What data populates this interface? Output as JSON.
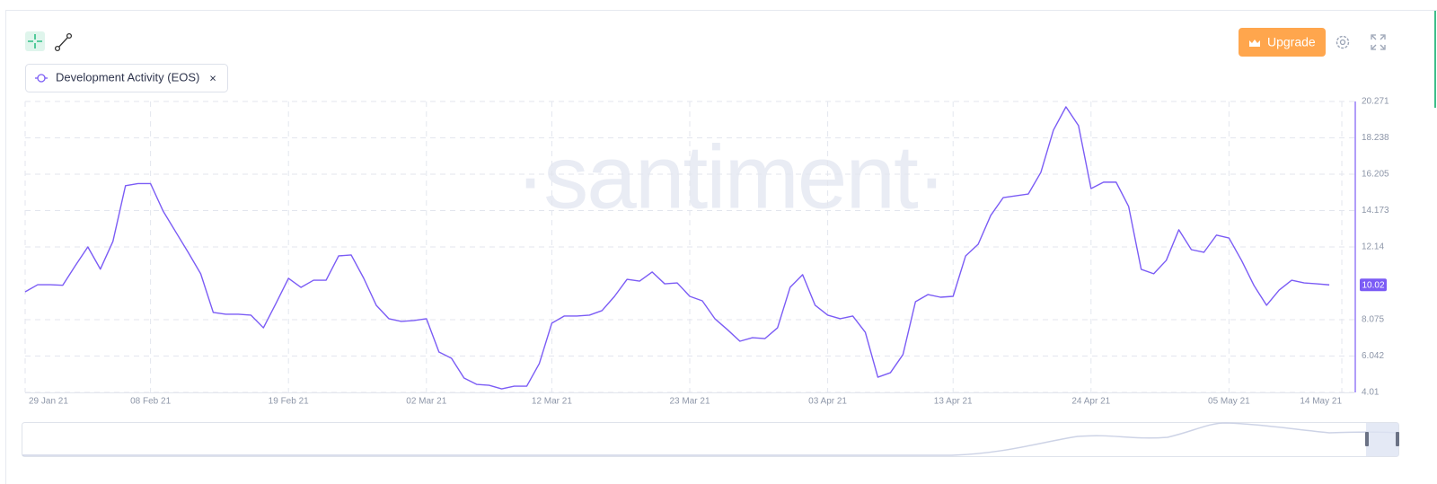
{
  "toolbar": {
    "upgrade": "Upgrade"
  },
  "metric_chip": {
    "close": "×"
  },
  "watermark": "·santiment·",
  "chart_data": {
    "type": "line",
    "series": [
      {
        "name": "Development Activity (EOS)",
        "color": "#7b5cf5",
        "values": [
          9.63,
          10.03,
          10.03,
          10.0,
          11.09,
          12.14,
          10.9,
          12.45,
          15.56,
          15.68,
          15.68,
          14.15,
          12.99,
          11.84,
          10.64,
          8.48,
          8.38,
          8.38,
          8.33,
          7.62,
          8.98,
          10.39,
          9.88,
          10.28,
          10.28,
          11.64,
          11.69,
          10.39,
          8.88,
          8.13,
          7.98,
          8.03,
          8.13,
          6.27,
          5.92,
          4.81,
          4.46,
          4.41,
          4.21,
          4.36,
          4.36,
          5.62,
          7.88,
          8.28,
          8.28,
          8.33,
          8.58,
          9.38,
          10.33,
          10.23,
          10.74,
          10.08,
          10.13,
          9.38,
          9.13,
          8.13,
          7.52,
          6.87,
          7.07,
          7.02,
          7.62,
          9.88,
          10.59,
          8.88,
          8.33,
          8.13,
          8.28,
          7.37,
          4.86,
          5.11,
          6.12,
          9.08,
          9.48,
          9.33,
          9.38,
          11.64,
          12.29,
          13.9,
          14.9,
          15.0,
          15.1,
          16.31,
          18.67,
          19.97,
          18.92,
          15.4,
          15.76,
          15.76,
          14.4,
          10.89,
          10.64,
          11.39,
          13.1,
          11.99,
          11.84,
          12.8,
          12.64,
          11.39,
          9.98,
          8.88,
          9.73,
          10.28,
          10.13,
          10.08,
          10.02
        ]
      }
    ],
    "x": [
      "2021-01-29",
      "2021-01-30",
      "2021-01-31",
      "2021-02-01",
      "2021-02-02",
      "2021-02-03",
      "2021-02-04",
      "2021-02-05",
      "2021-02-06",
      "2021-02-07",
      "2021-02-08",
      "2021-02-09",
      "2021-02-10",
      "2021-02-11",
      "2021-02-12",
      "2021-02-13",
      "2021-02-14",
      "2021-02-15",
      "2021-02-16",
      "2021-02-17",
      "2021-02-18",
      "2021-02-19",
      "2021-02-20",
      "2021-02-21",
      "2021-02-22",
      "2021-02-23",
      "2021-02-24",
      "2021-02-25",
      "2021-02-26",
      "2021-02-27",
      "2021-02-28",
      "2021-03-01",
      "2021-03-02",
      "2021-03-03",
      "2021-03-04",
      "2021-03-05",
      "2021-03-06",
      "2021-03-07",
      "2021-03-08",
      "2021-03-09",
      "2021-03-10",
      "2021-03-11",
      "2021-03-12",
      "2021-03-13",
      "2021-03-14",
      "2021-03-15",
      "2021-03-16",
      "2021-03-17",
      "2021-03-18",
      "2021-03-19",
      "2021-03-20",
      "2021-03-21",
      "2021-03-22",
      "2021-03-23",
      "2021-03-24",
      "2021-03-25",
      "2021-03-26",
      "2021-03-27",
      "2021-03-28",
      "2021-03-29",
      "2021-03-30",
      "2021-03-31",
      "2021-04-01",
      "2021-04-02",
      "2021-04-03",
      "2021-04-04",
      "2021-04-05",
      "2021-04-06",
      "2021-04-07",
      "2021-04-08",
      "2021-04-09",
      "2021-04-10",
      "2021-04-11",
      "2021-04-12",
      "2021-04-13",
      "2021-04-14",
      "2021-04-15",
      "2021-04-16",
      "2021-04-17",
      "2021-04-18",
      "2021-04-19",
      "2021-04-20",
      "2021-04-21",
      "2021-04-22",
      "2021-04-23",
      "2021-04-24",
      "2021-04-25",
      "2021-04-26",
      "2021-04-27",
      "2021-04-28",
      "2021-04-29",
      "2021-04-30",
      "2021-05-01",
      "2021-05-02",
      "2021-05-03",
      "2021-05-04",
      "2021-05-05",
      "2021-05-06",
      "2021-05-07",
      "2021-05-08",
      "2021-05-09",
      "2021-05-10",
      "2021-05-11",
      "2021-05-12",
      "2021-05-13"
    ],
    "xlim": [
      "2021-01-29",
      "2021-05-15"
    ],
    "xticks": [
      {
        "value": "2021-01-29",
        "label": "29 Jan 21"
      },
      {
        "value": "2021-02-08",
        "label": "08 Feb 21"
      },
      {
        "value": "2021-02-19",
        "label": "19 Feb 21"
      },
      {
        "value": "2021-03-02",
        "label": "02 Mar 21"
      },
      {
        "value": "2021-03-12",
        "label": "12 Mar 21"
      },
      {
        "value": "2021-03-23",
        "label": "23 Mar 21"
      },
      {
        "value": "2021-04-03",
        "label": "03 Apr 21"
      },
      {
        "value": "2021-04-13",
        "label": "13 Apr 21"
      },
      {
        "value": "2021-04-24",
        "label": "24 Apr 21"
      },
      {
        "value": "2021-05-05",
        "label": "05 May 21"
      },
      {
        "value": "2021-05-14",
        "label": "14 May 21"
      }
    ],
    "ylim": [
      4.01,
      20.271
    ],
    "yticks": [
      4.01,
      6.042,
      8.075,
      12.14,
      14.173,
      16.205,
      18.238,
      20.271
    ],
    "grid": true
  }
}
